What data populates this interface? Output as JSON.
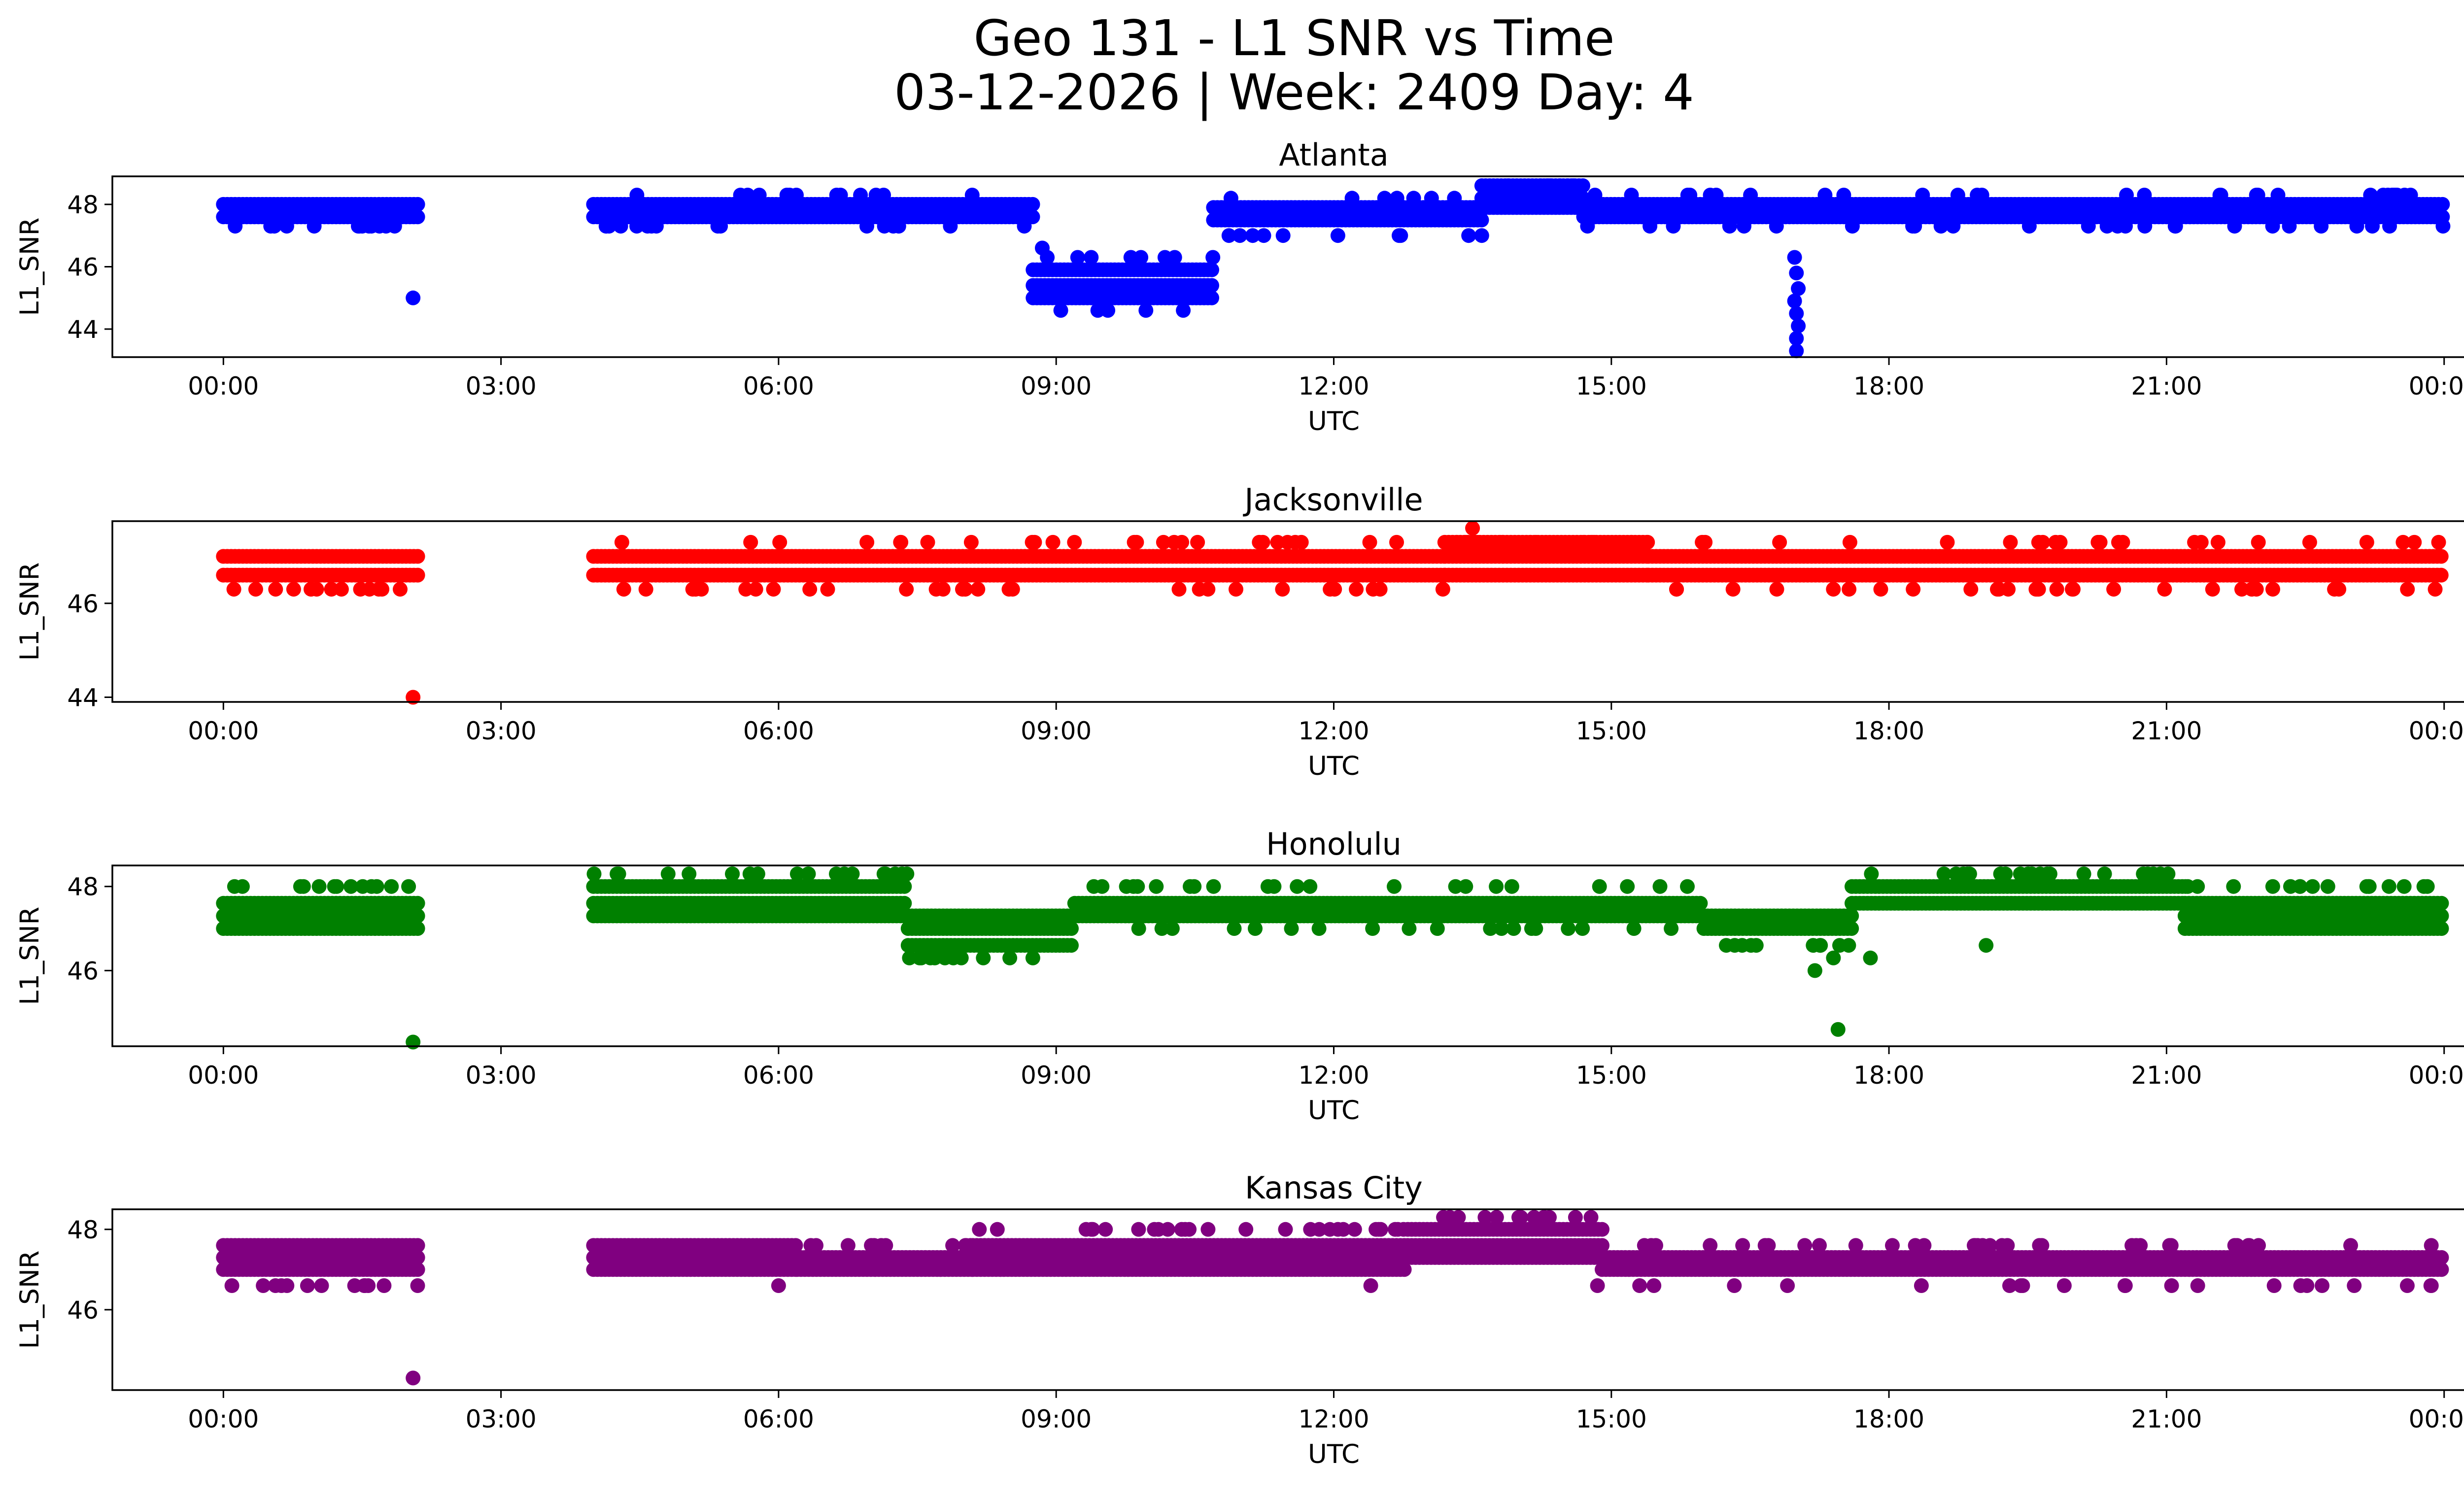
{
  "title_lines": [
    "Geo 131 - L1 SNR vs Time",
    "03-12-2026 | Week: 2409 Day: 4"
  ],
  "chart_data": [
    {
      "type": "scatter",
      "title": "Atlanta",
      "color": "#0000ff",
      "xlabel": "UTC",
      "ylabel": "L1_SNR",
      "xlim": [
        -1.2,
        25.2
      ],
      "x_ticks": [
        0,
        3,
        6,
        9,
        12,
        15,
        18,
        21,
        24
      ],
      "x_tick_labels": [
        "00:00",
        "03:00",
        "06:00",
        "09:00",
        "12:00",
        "15:00",
        "18:00",
        "21:00",
        "00:00"
      ],
      "ylim": [
        43.1,
        48.9
      ],
      "y_ticks": [
        44,
        46,
        48
      ],
      "y_tick_labels": [
        "44",
        "46",
        "48"
      ],
      "segments": [
        {
          "x": [
            0.0,
            2.1
          ],
          "levels": [
            48.0,
            47.6
          ],
          "sparse": [
            47.3
          ]
        },
        {
          "x": [
            4.0,
            8.75
          ],
          "levels": [
            48.0,
            47.6
          ],
          "sparse": [
            48.3,
            47.3
          ]
        },
        {
          "x": [
            8.75,
            10.7
          ],
          "levels": [
            45.9,
            45.4,
            45.0
          ],
          "sparse": [
            46.3,
            44.6
          ]
        },
        {
          "x": [
            10.7,
            13.6
          ],
          "levels": [
            47.9,
            47.5
          ],
          "sparse": [
            48.2,
            47.0
          ]
        },
        {
          "x": [
            13.6,
            14.7
          ],
          "levels": [
            48.6,
            48.2,
            47.9
          ],
          "sparse": [
            48.6
          ]
        },
        {
          "x": [
            14.7,
            24.0
          ],
          "levels": [
            48.0,
            47.6
          ],
          "sparse": [
            48.3,
            47.3
          ]
        }
      ],
      "outliers": [
        [
          2.05,
          45.0
        ],
        [
          16.98,
          46.3
        ],
        [
          17.0,
          45.8
        ],
        [
          17.02,
          45.3
        ],
        [
          16.98,
          44.9
        ],
        [
          17.0,
          44.5
        ],
        [
          17.02,
          44.1
        ],
        [
          17.0,
          43.7
        ],
        [
          17.0,
          43.3
        ],
        [
          9.05,
          44.6
        ],
        [
          8.85,
          46.6
        ]
      ]
    },
    {
      "type": "scatter",
      "title": "Jacksonville",
      "color": "#ff0000",
      "xlabel": "UTC",
      "ylabel": "L1_SNR",
      "xlim": [
        -1.2,
        25.2
      ],
      "x_ticks": [
        0,
        3,
        6,
        9,
        12,
        15,
        18,
        21,
        24
      ],
      "x_tick_labels": [
        "00:00",
        "03:00",
        "06:00",
        "09:00",
        "12:00",
        "15:00",
        "18:00",
        "21:00",
        "00:00"
      ],
      "ylim": [
        43.9,
        47.75
      ],
      "y_ticks": [
        44,
        46
      ],
      "y_tick_labels": [
        "44",
        "46"
      ],
      "segments": [
        {
          "x": [
            0.0,
            2.1
          ],
          "levels": [
            47.0,
            46.6
          ],
          "sparse": [
            46.3
          ]
        },
        {
          "x": [
            4.0,
            13.2
          ],
          "levels": [
            47.0,
            46.6
          ],
          "sparse": [
            47.3,
            46.3
          ]
        },
        {
          "x": [
            13.2,
            15.4
          ],
          "levels": [
            47.3,
            47.0,
            46.6
          ],
          "sparse": [
            47.3
          ]
        },
        {
          "x": [
            15.4,
            24.0
          ],
          "levels": [
            47.0,
            46.6
          ],
          "sparse": [
            47.3,
            46.3
          ]
        }
      ],
      "outliers": [
        [
          2.05,
          44.0
        ],
        [
          13.5,
          47.6
        ]
      ]
    },
    {
      "type": "scatter",
      "title": "Honolulu",
      "color": "#008000",
      "xlabel": "UTC",
      "ylabel": "L1_SNR",
      "xlim": [
        -1.2,
        25.2
      ],
      "x_ticks": [
        0,
        3,
        6,
        9,
        12,
        15,
        18,
        21,
        24
      ],
      "x_tick_labels": [
        "00:00",
        "03:00",
        "06:00",
        "09:00",
        "12:00",
        "15:00",
        "18:00",
        "21:00",
        "00:00"
      ],
      "ylim": [
        44.2,
        48.5
      ],
      "y_ticks": [
        46,
        48
      ],
      "y_tick_labels": [
        "46",
        "48"
      ],
      "segments": [
        {
          "x": [
            0.0,
            2.1
          ],
          "levels": [
            47.6,
            47.3,
            47.0
          ],
          "sparse": [
            48.0
          ]
        },
        {
          "x": [
            4.0,
            7.4
          ],
          "levels": [
            48.0,
            47.6,
            47.3
          ],
          "sparse": [
            48.3
          ]
        },
        {
          "x": [
            7.4,
            9.2
          ],
          "levels": [
            47.3,
            47.0,
            46.6
          ],
          "sparse": [
            46.3
          ]
        },
        {
          "x": [
            9.2,
            16.0
          ],
          "levels": [
            47.6,
            47.3
          ],
          "sparse": [
            48.0,
            47.0
          ]
        },
        {
          "x": [
            16.0,
            17.6
          ],
          "levels": [
            47.3,
            47.0
          ],
          "sparse": [
            46.6
          ]
        },
        {
          "x": [
            17.6,
            21.2
          ],
          "levels": [
            48.0,
            47.6
          ],
          "sparse": [
            48.3
          ]
        },
        {
          "x": [
            21.2,
            24.0
          ],
          "levels": [
            47.6,
            47.3,
            47.0
          ],
          "sparse": [
            48.0
          ]
        }
      ],
      "outliers": [
        [
          2.05,
          44.3
        ],
        [
          17.2,
          46.0
        ],
        [
          17.4,
          46.3
        ],
        [
          17.8,
          46.3
        ],
        [
          17.45,
          44.6
        ],
        [
          19.05,
          46.6
        ]
      ]
    },
    {
      "type": "scatter",
      "title": "Kansas City",
      "color": "#800080",
      "xlabel": "UTC",
      "ylabel": "L1_SNR",
      "xlim": [
        -1.2,
        25.2
      ],
      "x_ticks": [
        0,
        3,
        6,
        9,
        12,
        15,
        18,
        21,
        24
      ],
      "x_tick_labels": [
        "00:00",
        "03:00",
        "06:00",
        "09:00",
        "12:00",
        "15:00",
        "18:00",
        "21:00",
        "00:00"
      ],
      "ylim": [
        44.0,
        48.5
      ],
      "y_ticks": [
        46,
        48
      ],
      "y_tick_labels": [
        "46",
        "48"
      ],
      "segments": [
        {
          "x": [
            0.0,
            2.1
          ],
          "levels": [
            47.6,
            47.3,
            47.0
          ],
          "sparse": [
            46.6
          ]
        },
        {
          "x": [
            4.0,
            6.2
          ],
          "levels": [
            47.6,
            47.3,
            47.0
          ],
          "sparse": []
        },
        {
          "x": [
            6.2,
            8.1
          ],
          "levels": [
            47.3,
            47.0
          ],
          "sparse": [
            47.6
          ]
        },
        {
          "x": [
            8.1,
            12.8
          ],
          "levels": [
            47.6,
            47.3,
            47.0
          ],
          "sparse": [
            48.0
          ]
        },
        {
          "x": [
            12.8,
            14.9
          ],
          "levels": [
            48.0,
            47.6,
            47.3
          ],
          "sparse": [
            48.3
          ]
        },
        {
          "x": [
            14.9,
            24.0
          ],
          "levels": [
            47.3,
            47.0
          ],
          "sparse": [
            47.6,
            46.6
          ]
        }
      ],
      "outliers": [
        [
          2.05,
          44.3
        ],
        [
          6.0,
          46.6
        ],
        [
          12.4,
          46.6
        ],
        [
          14.85,
          46.6
        ],
        [
          14.0,
          48.3
        ]
      ]
    }
  ]
}
